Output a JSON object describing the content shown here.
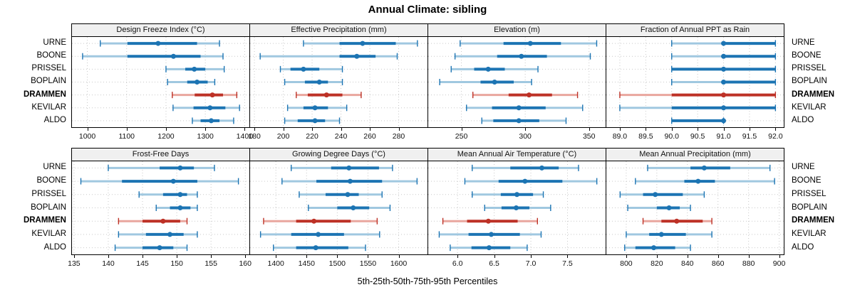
{
  "title": "Annual Climate: sibling",
  "footer": "5th-25th-50th-75th-95th Percentiles",
  "sites": [
    "URNE",
    "BOONE",
    "PRISSEL",
    "BOPLAIN",
    "DRAMMEN",
    "KEVILAR",
    "ALDO"
  ],
  "highlight_site": "DRAMMEN",
  "colors": {
    "normal_dark": "#1c74b3",
    "normal_light": "#a0c8e0",
    "highlight_dark": "#bd3126",
    "highlight_light": "#e9a69e",
    "grid": "#c9c9c9",
    "strip_bg": "#f0f0f0"
  },
  "chart_data": {
    "type": "percentile_range_trellis",
    "percentile_labels": [
      "5th",
      "25th",
      "50th",
      "75th",
      "95th"
    ],
    "layout": {
      "rows": 2,
      "cols": 4,
      "legend_position": "none",
      "grid": "dotted"
    },
    "panels": [
      {
        "title": "Design Freeze Index (°C)",
        "xlim": [
          961,
          1412
        ],
        "ticks": [
          1000,
          1100,
          1200,
          1300,
          1400
        ],
        "tick_labels": [
          "1000",
          "1100",
          "1200",
          "1300",
          "1400"
        ],
        "series": {
          "URNE": [
            1033,
            1102,
            1180,
            1279,
            1336
          ],
          "BOONE": [
            988,
            1102,
            1219,
            1288,
            1345
          ],
          "PRISSEL": [
            1200,
            1249,
            1272,
            1300,
            1348
          ],
          "BOPLAIN": [
            1204,
            1254,
            1279,
            1306,
            1324
          ],
          "DRAMMEN": [
            1216,
            1273,
            1318,
            1345,
            1380
          ],
          "KEVILAR": [
            1218,
            1270,
            1312,
            1351,
            1387
          ],
          "ALDO": [
            1267,
            1288,
            1315,
            1336,
            1372
          ]
        }
      },
      {
        "title": "Effective Precipitation (mm)",
        "xlim": [
          177,
          300
        ],
        "ticks": [
          180,
          200,
          220,
          240,
          260,
          280
        ],
        "tick_labels": [
          "180",
          "200",
          "220",
          "240",
          "260",
          "280"
        ],
        "series": {
          "URNE": [
            214,
            239,
            255,
            278,
            293
          ],
          "BOONE": [
            184,
            239,
            251,
            264,
            279
          ],
          "PRISSEL": [
            198,
            205,
            214,
            225,
            241
          ],
          "BOPLAIN": [
            201,
            215,
            225,
            231,
            241
          ],
          "DRAMMEN": [
            209,
            217,
            230,
            241,
            254
          ],
          "KEVILAR": [
            203,
            214,
            222,
            231,
            244
          ],
          "ALDO": [
            201,
            210,
            222,
            229,
            239
          ]
        }
      },
      {
        "title": "Elevation (m)",
        "xlim": [
          224,
          363
        ],
        "ticks": [
          250,
          300,
          350
        ],
        "tick_labels": [
          "250",
          "300",
          "350"
        ],
        "series": {
          "URNE": [
            249,
            283,
            304,
            328,
            356
          ],
          "BOONE": [
            245,
            278,
            297,
            317,
            351
          ],
          "PRISSEL": [
            242,
            260,
            271,
            284,
            310
          ],
          "BOPLAIN": [
            233,
            265,
            276,
            291,
            305
          ],
          "DRAMMEN": [
            259,
            287,
            303,
            321,
            341
          ],
          "KEVILAR": [
            254,
            274,
            295,
            316,
            345
          ],
          "ALDO": [
            266,
            275,
            295,
            311,
            332
          ]
        }
      },
      {
        "title": "Fraction of Annual PPT as Rain",
        "xlim": [
          88.74,
          92.16
        ],
        "ticks": [
          89.0,
          89.5,
          90.0,
          90.5,
          91.0,
          91.5,
          92.0
        ],
        "tick_labels": [
          "89.0",
          "89.5",
          "90.0",
          "90.5",
          "91.0",
          "91.5",
          "92.0"
        ],
        "series": {
          "URNE": [
            90,
            91,
            91,
            92,
            92
          ],
          "BOONE": [
            90,
            91,
            91,
            92,
            92
          ],
          "PRISSEL": [
            90,
            90,
            91,
            92,
            92
          ],
          "BOPLAIN": [
            90,
            91,
            91,
            92,
            92
          ],
          "DRAMMEN": [
            89,
            90,
            91,
            92,
            92
          ],
          "KEVILAR": [
            89,
            90,
            91,
            92,
            92
          ],
          "ALDO": [
            90,
            90,
            91,
            91,
            91
          ]
        }
      },
      {
        "title": "Frost-Free Days",
        "xlim": [
          134.7,
          160.6
        ],
        "ticks": [
          135,
          140,
          145,
          150,
          155,
          160
        ],
        "tick_labels": [
          "135",
          "140",
          "145",
          "150",
          "155",
          "160"
        ],
        "series": {
          "URNE": [
            140,
            147.5,
            150.5,
            152.5,
            155.5
          ],
          "BOONE": [
            136,
            142,
            149.5,
            153,
            159
          ],
          "PRISSEL": [
            144.5,
            148,
            150.5,
            151.5,
            153
          ],
          "BOPLAIN": [
            147,
            149,
            150.5,
            152,
            153
          ],
          "DRAMMEN": [
            141.5,
            145,
            148,
            150.5,
            151.5
          ],
          "KEVILAR": [
            141.5,
            145.5,
            149,
            151,
            153
          ],
          "ALDO": [
            141,
            145,
            147.5,
            149.5,
            151.5
          ]
        }
      },
      {
        "title": "Growing Degree Days (°C)",
        "xlim": [
          1358,
          1647
        ],
        "ticks": [
          1400,
          1450,
          1500,
          1550,
          1600
        ],
        "tick_labels": [
          "1400",
          "1450",
          "1500",
          "1550",
          "1600"
        ],
        "series": {
          "URNE": [
            1425,
            1490,
            1519,
            1568,
            1590
          ],
          "BOONE": [
            1410,
            1466,
            1521,
            1573,
            1630
          ],
          "PRISSEL": [
            1438,
            1481,
            1517,
            1535,
            1573
          ],
          "BOPLAIN": [
            1453,
            1500,
            1526,
            1552,
            1586
          ],
          "DRAMMEN": [
            1380,
            1433,
            1462,
            1522,
            1565
          ],
          "KEVILAR": [
            1375,
            1425,
            1469,
            1511,
            1569
          ],
          "ALDO": [
            1396,
            1433,
            1465,
            1518,
            1546
          ]
        }
      },
      {
        "title": "Mean Annual Air Temperature (°C)",
        "xlim": [
          5.6,
          8.02
        ],
        "ticks": [
          6.0,
          6.5,
          7.0,
          7.5
        ],
        "tick_labels": [
          "6.0",
          "6.5",
          "7.0",
          "7.5"
        ],
        "series": {
          "URNE": [
            6.2,
            6.72,
            7.15,
            7.38,
            7.65
          ],
          "BOONE": [
            6.1,
            6.56,
            6.92,
            7.43,
            7.9
          ],
          "PRISSEL": [
            6.2,
            6.59,
            6.81,
            7.03,
            7.17
          ],
          "BOPLAIN": [
            6.37,
            6.6,
            6.8,
            6.98,
            7.27
          ],
          "DRAMMEN": [
            5.8,
            6.13,
            6.42,
            6.82,
            7.09
          ],
          "KEVILAR": [
            5.75,
            6.15,
            6.46,
            6.85,
            7.14
          ],
          "ALDO": [
            5.9,
            6.19,
            6.43,
            6.72,
            6.95
          ]
        }
      },
      {
        "title": "Mean Annual Precipitation (mm)",
        "xlim": [
          787,
          903
        ],
        "ticks": [
          800,
          820,
          840,
          860,
          880,
          900
        ],
        "tick_labels": [
          "800",
          "820",
          "840",
          "860",
          "880",
          "900"
        ],
        "series": {
          "URNE": [
            814,
            842,
            851,
            868,
            894
          ],
          "BOONE": [
            806,
            838,
            847,
            858,
            897
          ],
          "PRISSEL": [
            796,
            811,
            819,
            837,
            851
          ],
          "BOPLAIN": [
            801,
            820,
            828,
            835,
            842
          ],
          "DRAMMEN": [
            811,
            823,
            833,
            850,
            856
          ],
          "KEVILAR": [
            800,
            815,
            823,
            839,
            856
          ],
          "ALDO": [
            799,
            806,
            818,
            832,
            842
          ]
        }
      }
    ]
  }
}
